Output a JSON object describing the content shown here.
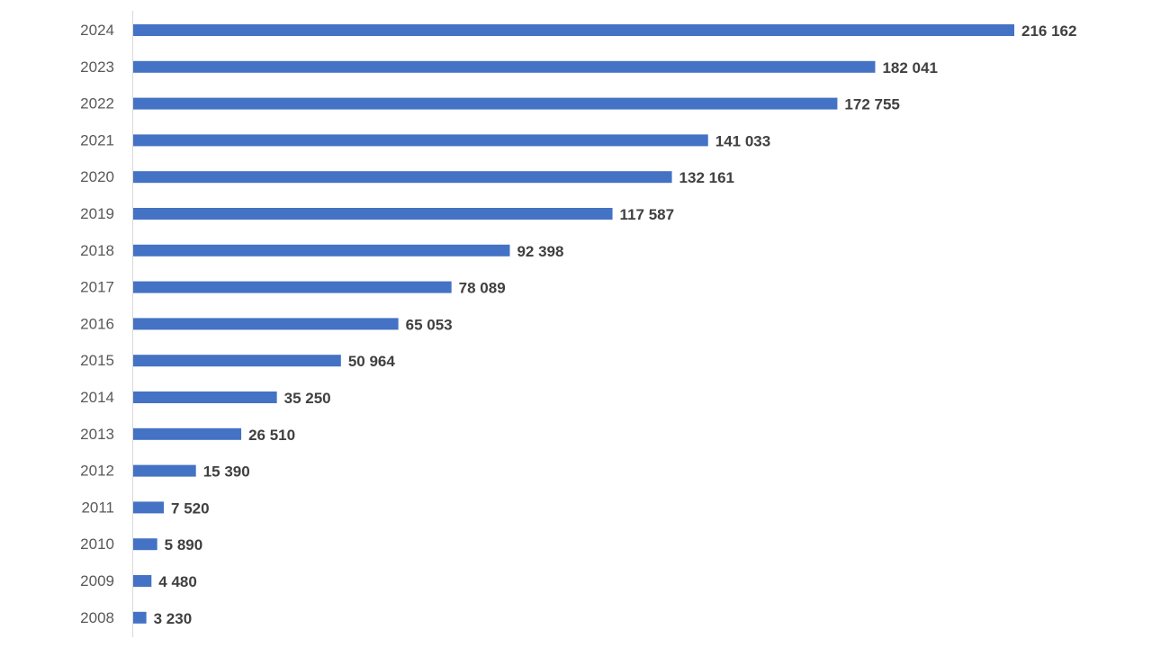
{
  "chart_data": {
    "type": "bar",
    "orientation": "horizontal",
    "categories": [
      "2024",
      "2023",
      "2022",
      "2021",
      "2020",
      "2019",
      "2018",
      "2017",
      "2016",
      "2015",
      "2014",
      "2013",
      "2012",
      "2011",
      "2010",
      "2009",
      "2008"
    ],
    "values": [
      216162,
      182041,
      172755,
      141033,
      132161,
      117587,
      92398,
      78089,
      65053,
      50964,
      35250,
      26510,
      15390,
      7520,
      5890,
      4480,
      3230
    ],
    "value_labels": [
      "216 162",
      "182 041",
      "172 755",
      "141 033",
      "132 161",
      "117 587",
      "92 398",
      "78 089",
      "65 053",
      "50 964",
      "35 250",
      "26 510",
      "15 390",
      "7 520",
      "5 890",
      "4 480",
      "3 230"
    ],
    "title": "",
    "xlabel": "",
    "ylabel": "",
    "xlim": [
      0,
      216162
    ],
    "grid": false,
    "legend": "none",
    "bar_color": "#4472C4",
    "axis_color": "#D9D9D9"
  }
}
